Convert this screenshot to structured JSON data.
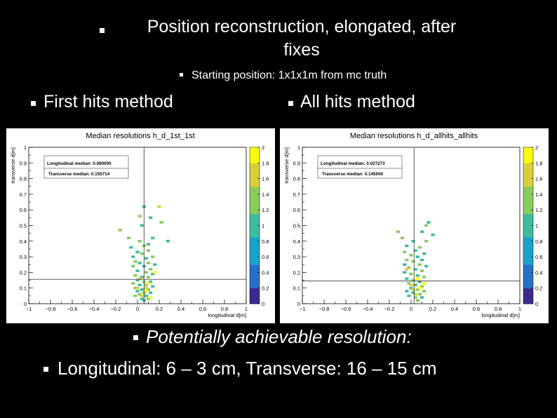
{
  "slide": {
    "title_line1": "Position reconstruction, elongated, after",
    "title_line2": "fixes",
    "subtitle": "Starting position: 1x1x1m from mc truth",
    "left_label": "First hits method",
    "right_label": "All hits method",
    "footer1": "Potentially achievable resolution:",
    "footer2": "Longitudinal: 6 – 3 cm, Transverse: 16 – 15 cm"
  },
  "colors": {
    "background": "#000000",
    "text": "#ffffff",
    "panel": "#ffffff",
    "palette": [
      "#3b2a8e",
      "#2a6fc6",
      "#1aa3c9",
      "#3fbca0",
      "#89cc5c",
      "#d9cf3a",
      "#f9fb0e"
    ]
  },
  "chart_data": [
    {
      "type": "heatmap",
      "title": "Median resolutions h_d_1st_1st",
      "xlabel": "longitudinal d[m]",
      "ylabel": "transverse d[m]",
      "xlim": [
        -1,
        1
      ],
      "ylim": [
        0,
        1
      ],
      "zlim": [
        0,
        2
      ],
      "xticks": [
        "−1",
        "−0.8",
        "−0.6",
        "−0.4",
        "−0.2",
        "0",
        "0.2",
        "0.4",
        "0.6",
        "0.8",
        "1"
      ],
      "yticks": [
        "0",
        "0.1",
        "0.2",
        "0.3",
        "0.4",
        "0.5",
        "0.6",
        "0.7",
        "0.8",
        "0.9",
        "1"
      ],
      "zticks": [
        "0",
        "0.2",
        "0.4",
        "0.6",
        "0.8",
        "1",
        "1.2",
        "1.4",
        "1.6",
        "1.8",
        "2"
      ],
      "annotations": [
        "Longitudinal median: 0.060000",
        "Transverse median: 0.155714"
      ],
      "median_lines": {
        "x": 0.06,
        "y": 0.155714
      },
      "points": [
        [
          0.06,
          0.62
        ],
        [
          0.02,
          0.56
        ],
        [
          0.04,
          0.5
        ],
        [
          -0.16,
          0.47
        ],
        [
          0.12,
          0.55
        ],
        [
          -0.08,
          0.42
        ],
        [
          0.1,
          0.38
        ],
        [
          0.22,
          0.52
        ],
        [
          0.28,
          0.4
        ],
        [
          0.02,
          0.4
        ],
        [
          0.14,
          0.42
        ],
        [
          0.06,
          0.37
        ],
        [
          -0.06,
          0.36
        ],
        [
          0.1,
          0.34
        ],
        [
          0.0,
          0.33
        ],
        [
          0.04,
          0.32
        ],
        [
          -0.04,
          0.3
        ],
        [
          0.14,
          0.3
        ],
        [
          0.08,
          0.29
        ],
        [
          -0.02,
          0.27
        ],
        [
          0.02,
          0.26
        ],
        [
          0.1,
          0.26
        ],
        [
          0.16,
          0.25
        ],
        [
          -0.04,
          0.24
        ],
        [
          0.06,
          0.24
        ],
        [
          0.12,
          0.22
        ],
        [
          0.0,
          0.21
        ],
        [
          0.08,
          0.2
        ],
        [
          0.14,
          0.19
        ],
        [
          -0.02,
          0.18
        ],
        [
          0.04,
          0.17
        ],
        [
          0.1,
          0.17
        ],
        [
          0.0,
          0.15
        ],
        [
          0.06,
          0.14
        ],
        [
          0.12,
          0.14
        ],
        [
          -0.04,
          0.13
        ],
        [
          0.02,
          0.12
        ],
        [
          0.08,
          0.12
        ],
        [
          0.14,
          0.11
        ],
        [
          -0.02,
          0.1
        ],
        [
          0.04,
          0.09
        ],
        [
          0.1,
          0.09
        ],
        [
          0.0,
          0.08
        ],
        [
          0.06,
          0.07
        ],
        [
          0.12,
          0.07
        ],
        [
          0.02,
          0.06
        ],
        [
          0.08,
          0.05
        ],
        [
          -0.02,
          0.05
        ],
        [
          0.04,
          0.03
        ],
        [
          0.1,
          0.03
        ],
        [
          0.06,
          0.02
        ]
      ],
      "highlights": [
        [
          0.2,
          0.62
        ],
        [
          0.16,
          0.2
        ],
        [
          0.02,
          0.16
        ],
        [
          0.1,
          0.13
        ],
        [
          0.0,
          0.1
        ],
        [
          0.08,
          0.08
        ],
        [
          0.04,
          0.05
        ],
        [
          0.12,
          0.04
        ],
        [
          0.08,
          0.1
        ]
      ]
    },
    {
      "type": "heatmap",
      "title": "Median resolutions h_d_allhits_allhits",
      "xlabel": "longitudinal d[m]",
      "ylabel": "transverse d[m]",
      "xlim": [
        -1,
        1
      ],
      "ylim": [
        0,
        1
      ],
      "zlim": [
        0,
        2
      ],
      "xticks": [
        "−1",
        "−0.8",
        "−0.6",
        "−0.4",
        "−0.2",
        "0",
        "0.2",
        "0.4",
        "0.6",
        "0.8",
        "1"
      ],
      "yticks": [
        "0",
        "0.1",
        "0.2",
        "0.3",
        "0.4",
        "0.5",
        "0.6",
        "0.7",
        "0.8",
        "0.9",
        "1"
      ],
      "zticks": [
        "0",
        "0.2",
        "0.4",
        "0.6",
        "0.8",
        "1",
        "1.2",
        "1.4",
        "1.6",
        "1.8",
        "2"
      ],
      "annotations": [
        "Longitudinal median: 0.027273",
        "Transverse median: 0.145000"
      ],
      "median_lines": {
        "x": 0.027273,
        "y": 0.145
      },
      "points": [
        [
          0.16,
          0.52
        ],
        [
          0.14,
          0.5
        ],
        [
          0.1,
          0.46
        ],
        [
          -0.12,
          0.46
        ],
        [
          0.2,
          0.44
        ],
        [
          -0.08,
          0.42
        ],
        [
          0.02,
          0.4
        ],
        [
          0.14,
          0.4
        ],
        [
          -0.04,
          0.37
        ],
        [
          0.08,
          0.36
        ],
        [
          0.04,
          0.34
        ],
        [
          -0.06,
          0.33
        ],
        [
          0.12,
          0.32
        ],
        [
          0.0,
          0.31
        ],
        [
          0.06,
          0.3
        ],
        [
          -0.04,
          0.28
        ],
        [
          0.1,
          0.28
        ],
        [
          0.02,
          0.27
        ],
        [
          -0.06,
          0.25
        ],
        [
          0.08,
          0.25
        ],
        [
          0.14,
          0.24
        ],
        [
          -0.02,
          0.23
        ],
        [
          0.04,
          0.22
        ],
        [
          0.1,
          0.21
        ],
        [
          -0.06,
          0.2
        ],
        [
          0.0,
          0.19
        ],
        [
          0.06,
          0.18
        ],
        [
          0.12,
          0.17
        ],
        [
          -0.04,
          0.16
        ],
        [
          0.02,
          0.15
        ],
        [
          0.08,
          0.14
        ],
        [
          -0.02,
          0.13
        ],
        [
          0.04,
          0.12
        ],
        [
          0.1,
          0.11
        ],
        [
          0.0,
          0.1
        ],
        [
          0.06,
          0.09
        ],
        [
          -0.04,
          0.08
        ],
        [
          0.12,
          0.08
        ],
        [
          0.02,
          0.07
        ],
        [
          0.08,
          0.06
        ],
        [
          -0.02,
          0.05
        ],
        [
          0.04,
          0.04
        ],
        [
          0.1,
          0.04
        ],
        [
          0.06,
          0.02
        ]
      ],
      "highlights": [
        [
          -0.04,
          0.22
        ],
        [
          0.06,
          0.16
        ],
        [
          0.0,
          0.12
        ],
        [
          0.08,
          0.1
        ],
        [
          0.02,
          0.09
        ],
        [
          0.12,
          0.13
        ],
        [
          0.04,
          0.06
        ]
      ]
    }
  ]
}
